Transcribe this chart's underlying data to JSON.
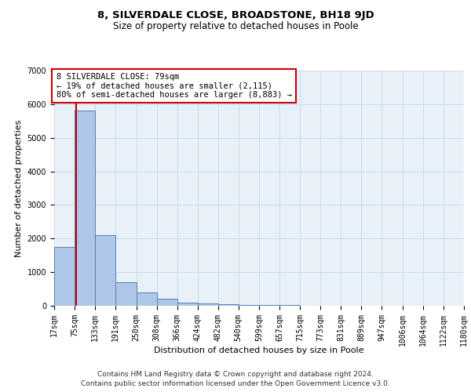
{
  "title_line1": "8, SILVERDALE CLOSE, BROADSTONE, BH18 9JD",
  "title_line2": "Size of property relative to detached houses in Poole",
  "xlabel": "Distribution of detached houses by size in Poole",
  "ylabel": "Number of detached properties",
  "footnote_line1": "Contains HM Land Registry data © Crown copyright and database right 2024.",
  "footnote_line2": "Contains public sector information licensed under the Open Government Licence v3.0.",
  "annotation_line1": "8 SILVERDALE CLOSE: 79sqm",
  "annotation_line2": "← 19% of detached houses are smaller (2,115)",
  "annotation_line3": "80% of semi-detached houses are larger (8,883) →",
  "property_size": 79,
  "bin_edges": [
    17,
    75,
    133,
    191,
    250,
    308,
    366,
    424,
    482,
    540,
    599,
    657,
    715,
    773,
    831,
    889,
    947,
    1006,
    1064,
    1122,
    1180
  ],
  "bar_heights": [
    1750,
    5800,
    2100,
    700,
    400,
    200,
    100,
    75,
    50,
    30,
    20,
    15,
    10,
    8,
    6,
    5,
    4,
    3,
    2,
    1
  ],
  "bar_color": "#aec6e8",
  "bar_edge_color": "#5580b8",
  "bar_edge_width": 0.7,
  "redline_color": "#cc0000",
  "annotation_box_edge_color": "#cc0000",
  "annotation_box_face_color": "#ffffff",
  "ylim": [
    0,
    7000
  ],
  "yticks": [
    0,
    1000,
    2000,
    3000,
    4000,
    5000,
    6000,
    7000
  ],
  "grid_color": "#c8d8ea",
  "background_color": "#e8f0f8",
  "title_fontsize": 9.5,
  "subtitle_fontsize": 8.5,
  "axis_label_fontsize": 8,
  "tick_fontsize": 7,
  "annotation_fontsize": 7.5,
  "footnote_fontsize": 6.5
}
